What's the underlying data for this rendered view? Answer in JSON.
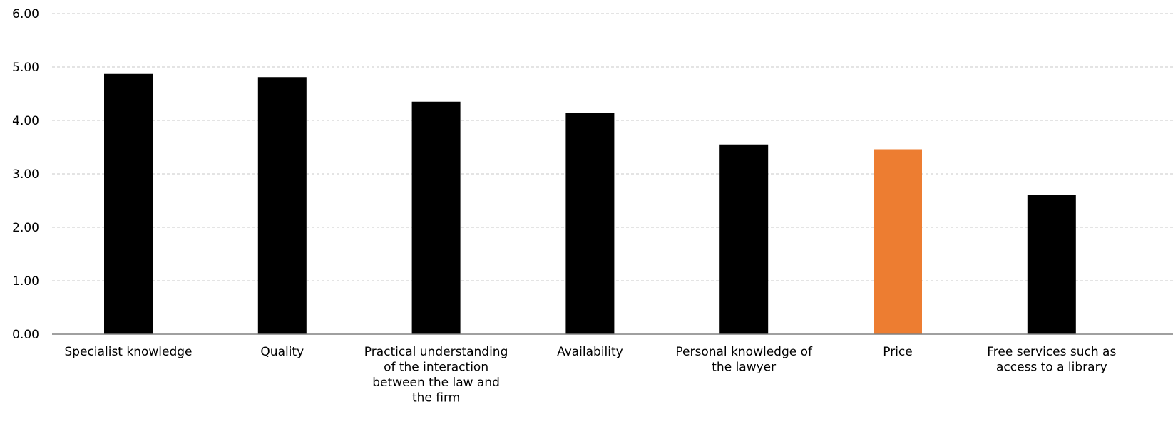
{
  "chart_data": {
    "type": "bar",
    "title": "",
    "xlabel": "",
    "ylabel": "",
    "ylim": [
      0,
      6
    ],
    "yticks": [
      0,
      1,
      2,
      3,
      4,
      5,
      6
    ],
    "ytick_labels": [
      "0.00",
      "1.00",
      "2.00",
      "3.00",
      "4.00",
      "5.00",
      "6.00"
    ],
    "grid": true,
    "legend": "none",
    "categories": [
      "Specialist knowledge",
      "Quality",
      "Practical understanding of the interaction between the law and the firm",
      "Availability",
      "Personal knowledge of the lawyer",
      "Price",
      "Free services such as access to a library"
    ],
    "category_label_lines": [
      [
        "Specialist knowledge"
      ],
      [
        "Quality"
      ],
      [
        "Practical understanding",
        "of the interaction",
        "between the law and",
        "the firm"
      ],
      [
        "Availability"
      ],
      [
        "Personal knowledge of",
        "the lawyer"
      ],
      [
        "Price"
      ],
      [
        "Free services such as",
        "access to a library"
      ]
    ],
    "values": [
      4.87,
      4.81,
      4.35,
      4.14,
      3.55,
      3.46,
      2.61
    ],
    "colors": {
      "default_bar": "#000000",
      "highlight_bar": "#ED7D31",
      "gridline": "#C8C8C8",
      "axis": "#808080"
    },
    "highlight_category": "Price"
  }
}
